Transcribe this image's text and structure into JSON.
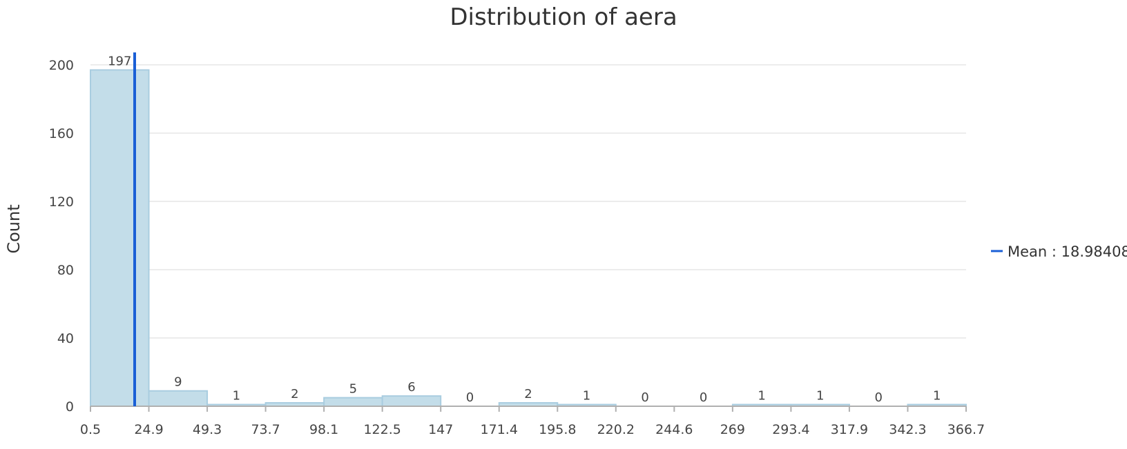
{
  "chart_data": {
    "type": "bar",
    "title": "Distribution of aera",
    "xlabel": "",
    "ylabel": "Count",
    "ylim": [
      0,
      200
    ],
    "y_ticks": [
      0,
      40,
      80,
      120,
      160,
      200
    ],
    "bin_edges": [
      "0.5",
      "24.9",
      "49.3",
      "73.7",
      "98.1",
      "122.5",
      "147",
      "171.4",
      "195.8",
      "220.2",
      "244.6",
      "269",
      "293.4",
      "317.9",
      "342.3",
      "366.7"
    ],
    "values": [
      197,
      9,
      1,
      2,
      5,
      6,
      0,
      2,
      1,
      0,
      0,
      1,
      1,
      0,
      1
    ],
    "grid": true,
    "mean": {
      "label": "Mean : 18.98408",
      "value": 18.98408,
      "color": "#1a5fd6"
    },
    "legend": {
      "position": "right",
      "entries": [
        "Mean : 18.98408"
      ]
    },
    "colors": {
      "bar_fill": "#c3dde9",
      "bar_stroke": "#a9cde0",
      "mean_line": "#1a5fd6"
    }
  }
}
